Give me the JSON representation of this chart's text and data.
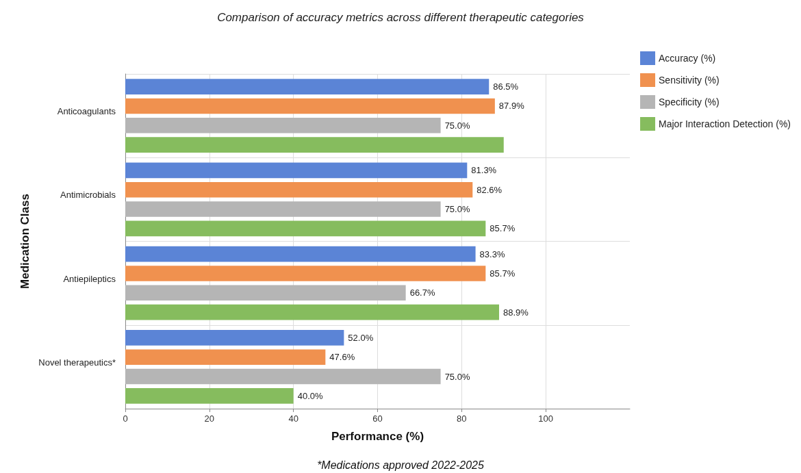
{
  "chart_data": {
    "type": "bar",
    "orientation": "horizontal",
    "title": "Comparison of accuracy metrics across different therapeutic categories",
    "xlabel": "Performance (%)",
    "ylabel": "Medication Class",
    "categories": [
      "Anticoagulants",
      "Antimicrobials",
      "Antiepileptics",
      "Novel therapeutics*"
    ],
    "series": [
      {
        "name": "Accuracy (%)",
        "color": "#5b84d6",
        "values": [
          86.5,
          81.3,
          83.3,
          52.0
        ],
        "value_labels": [
          "86.5%",
          "81.3%",
          "83.3%",
          "52.0%"
        ]
      },
      {
        "name": "Sensitivity (%)",
        "color": "#f0914f",
        "values": [
          87.9,
          82.6,
          85.7,
          47.6
        ],
        "value_labels": [
          "87.9%",
          "82.6%",
          "85.7%",
          "47.6%"
        ]
      },
      {
        "name": "Specificity (%)",
        "color": "#b5b5b5",
        "values": [
          75.0,
          75.0,
          66.7,
          75.0
        ],
        "value_labels": [
          "75.0%",
          "75.0%",
          "66.7%",
          "75.0%"
        ]
      },
      {
        "name": "Major Interaction Detection (%)",
        "color": "#86bc5e",
        "values": [
          90.0,
          85.7,
          88.9,
          40.0
        ],
        "value_labels": [
          null,
          "85.7%",
          "88.9%",
          "40.0%"
        ]
      }
    ],
    "xlim": [
      0,
      120
    ],
    "xticks": [
      0,
      20,
      40,
      60,
      80,
      100
    ],
    "grid": true,
    "legend": "top right",
    "annotations": [
      "*Medications approved 2022-2025"
    ]
  }
}
